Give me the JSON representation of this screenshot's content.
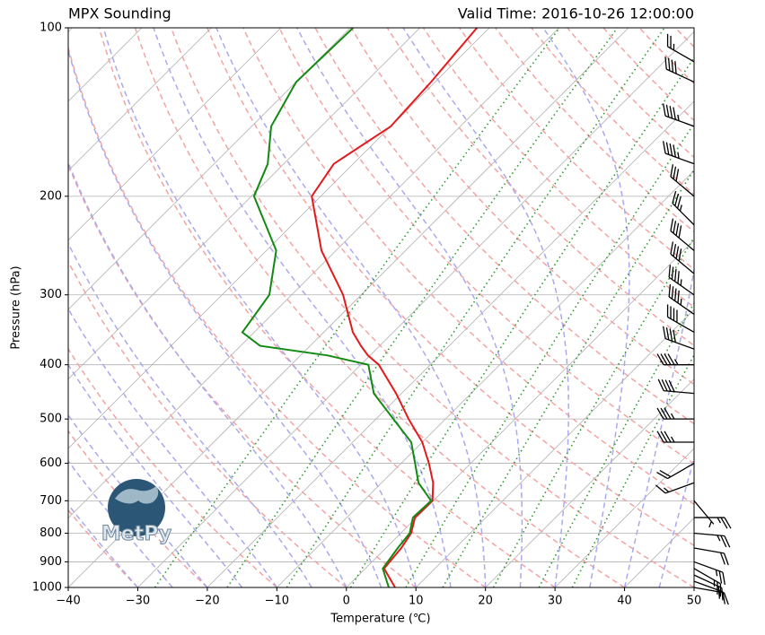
{
  "chart_data": {
    "type": "skewt",
    "title": "MPX Sounding",
    "subtitle": "Valid Time: 2016-10-26 12:00:00",
    "xlabel": "Temperature (℃)",
    "ylabel": "Pressure (hPa)",
    "logo_text": "MetPy",
    "xlim": [
      -40,
      50
    ],
    "ylim": [
      1000,
      100
    ],
    "log_y": true,
    "skew_degrees": 45,
    "grid": true,
    "xticks": [
      {
        "value": -40,
        "label": "−40"
      },
      {
        "value": -30,
        "label": "−30"
      },
      {
        "value": -20,
        "label": "−20"
      },
      {
        "value": -10,
        "label": "−10"
      },
      0,
      10,
      20,
      30,
      40,
      50
    ],
    "yticks": [
      100,
      200,
      300,
      400,
      500,
      600,
      700,
      800,
      900,
      1000
    ],
    "pressure": [
      1000,
      925,
      850,
      800,
      750,
      700,
      650,
      600,
      550,
      500,
      450,
      400,
      385,
      370,
      350,
      300,
      250,
      200,
      175,
      150,
      125,
      100
    ],
    "series": [
      {
        "color": "#e31a1c",
        "values": [
          7.0,
          2.7,
          2.2,
          1.5,
          -0.2,
          -0.1,
          -2.6,
          -6.0,
          -10.0,
          -15.3,
          -20.8,
          -27.4,
          -30.3,
          -32.7,
          -35.8,
          -42.6,
          -52.1,
          -61.3,
          -62.8,
          -60.0,
          -60.6,
          -61.8
        ]
      },
      {
        "color": "#138a13",
        "values": [
          6.1,
          2.5,
          1.7,
          1.3,
          -0.5,
          -0.3,
          -4.7,
          -8.0,
          -11.6,
          -17.5,
          -24.0,
          -28.9,
          -36.1,
          -47.2,
          -51.7,
          -53.2,
          -58.6,
          -69.6,
          -72.3,
          -77.2,
          -80.0,
          -79.6
        ]
      }
    ],
    "dry_adiabats": {
      "color": "#f4a3a3",
      "values": [
        -30,
        -20,
        -10,
        0,
        10,
        20,
        30,
        40,
        50,
        60,
        70,
        80,
        90,
        100,
        110,
        120,
        130,
        140,
        150,
        160,
        170,
        180,
        190
      ]
    },
    "moist_adiabats": {
      "color": "#a9a9ef",
      "values": [
        -30,
        -25,
        -20,
        -15,
        -10,
        -5,
        0,
        5,
        10,
        15,
        20,
        25,
        30,
        35,
        40,
        45
      ]
    },
    "mixing_lines": {
      "color": "#2e9a2e",
      "values": [
        0.0004,
        0.001,
        0.002,
        0.004,
        0.007,
        0.01,
        0.016,
        0.024,
        0.032
      ]
    },
    "barbs": {
      "pressure": [
        1000,
        975,
        950,
        925,
        900,
        850,
        800,
        750,
        700,
        650,
        600,
        550,
        500,
        450,
        400,
        375,
        350,
        325,
        300,
        275,
        250,
        225,
        200,
        175,
        150,
        125,
        115
      ],
      "direction": [
        100,
        110,
        115,
        120,
        110,
        100,
        95,
        90,
        140,
        250,
        240,
        270,
        270,
        275,
        270,
        290,
        300,
        305,
        305,
        310,
        310,
        315,
        310,
        290,
        290,
        295,
        300
      ],
      "speed": [
        10,
        15,
        20,
        25,
        25,
        20,
        25,
        25,
        5,
        15,
        20,
        35,
        35,
        40,
        45,
        40,
        40,
        45,
        45,
        40,
        40,
        35,
        30,
        45,
        45,
        40,
        25
      ]
    }
  }
}
